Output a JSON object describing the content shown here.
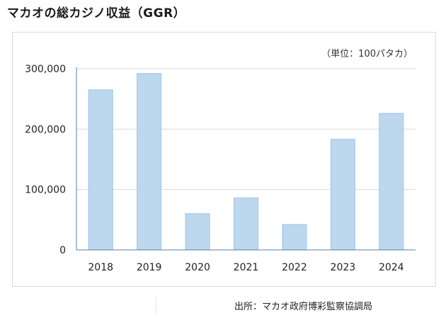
{
  "page": {
    "title": "マカオの総カジノ収益（GGR）",
    "source": "出所：マカオ政府博彩監察協調局"
  },
  "chart_data": {
    "type": "bar",
    "unit_label": "（単位：100パタカ）",
    "categories": [
      "2018",
      "2019",
      "2020",
      "2021",
      "2022",
      "2023",
      "2024"
    ],
    "values": [
      265000,
      292000,
      60000,
      86000,
      42000,
      183000,
      226000
    ],
    "ylim": [
      0,
      300000
    ],
    "yticks": [
      0,
      100000,
      200000,
      300000
    ],
    "ytick_labels": [
      "0",
      "100,000",
      "200,000",
      "300,000"
    ],
    "grid": true,
    "bar_color": "#bdd7ee",
    "bar_edge_color": "#9dc3e6",
    "grid_color": "#d9d9d9",
    "axis_color": "#5b7fa8"
  }
}
